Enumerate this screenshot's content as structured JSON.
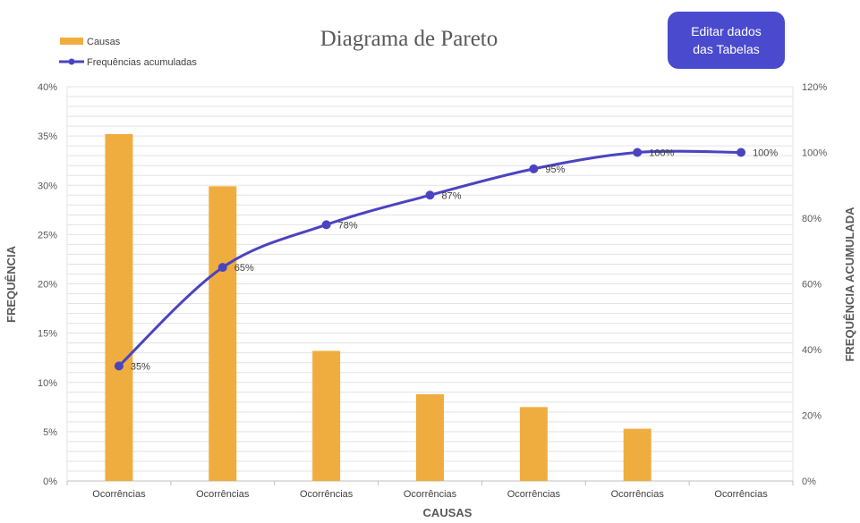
{
  "chart_data": {
    "type": "bar",
    "title": "Diagrama de Pareto",
    "xlabel": "CAUSAS",
    "ylabel": "FREQUÊNCIA",
    "y2label": "FREQUÊNCIA ACUMULADA",
    "categories": [
      "Ocorrências",
      "Ocorrências",
      "Ocorrências",
      "Ocorrências",
      "Ocorrências",
      "Ocorrências",
      "Ocorrências"
    ],
    "series": [
      {
        "name": "Causas",
        "type": "bar",
        "axis": "left",
        "color": "#f0ad3f",
        "values": [
          0.352,
          0.299,
          0.132,
          0.088,
          0.075,
          0.053,
          0
        ]
      },
      {
        "name": "Frequências acumuladas",
        "type": "line",
        "axis": "right",
        "color": "#4a44c0",
        "values": [
          0.35,
          0.65,
          0.78,
          0.87,
          0.95,
          1.0,
          1.0
        ],
        "labels": [
          "35%",
          "65%",
          "78%",
          "87%",
          "95%",
          "100%",
          "100%"
        ]
      }
    ],
    "ylim": [
      0,
      0.4
    ],
    "yticks": [
      "0%",
      "5%",
      "10%",
      "15%",
      "20%",
      "25%",
      "30%",
      "35%",
      "40%"
    ],
    "y2lim": [
      0,
      1.2
    ],
    "y2ticks": [
      "0%",
      "20%",
      "40%",
      "60%",
      "80%",
      "100%",
      "120%"
    ],
    "grid": true,
    "legend": "top-left"
  },
  "button": {
    "label": "Editar dados das Tabelas"
  }
}
